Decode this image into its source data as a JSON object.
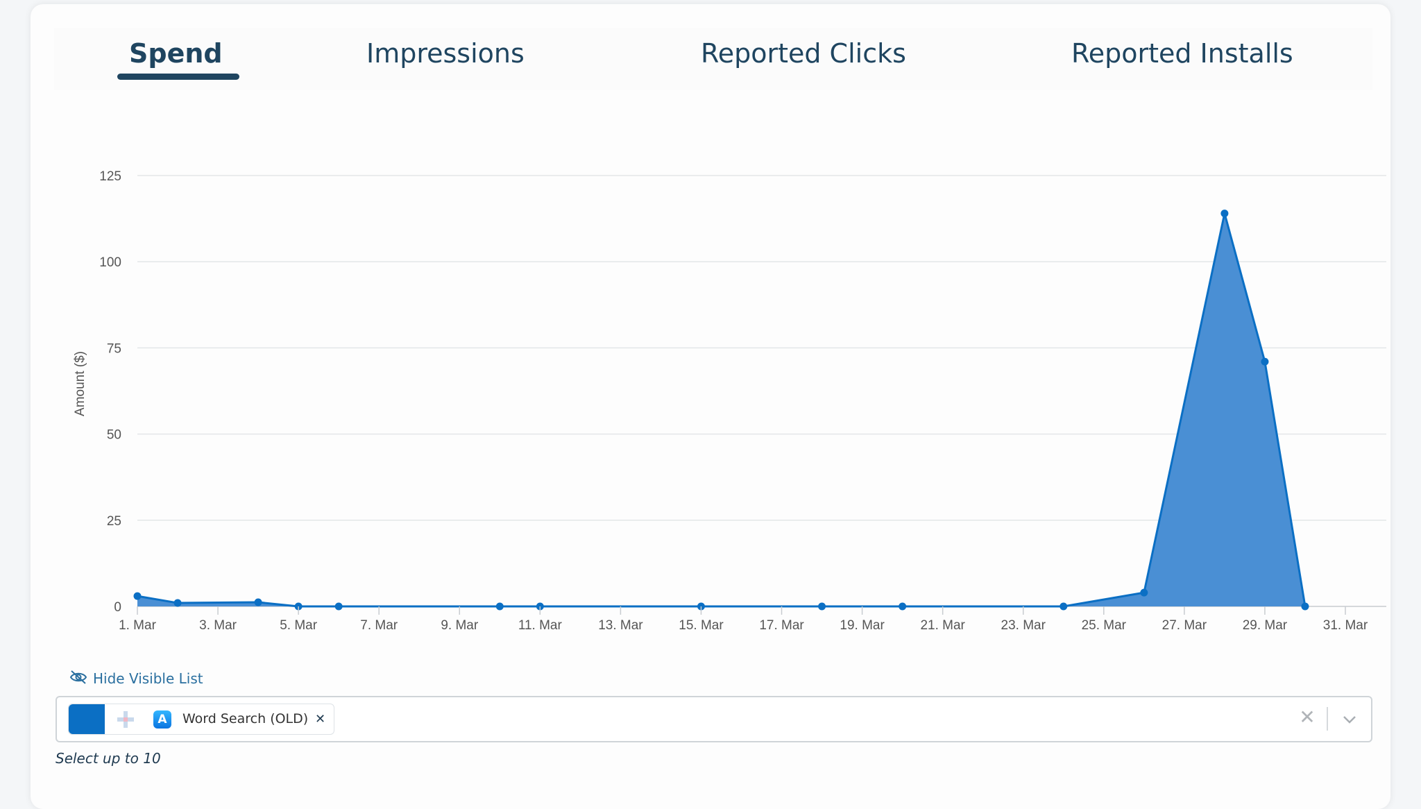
{
  "tabs": [
    {
      "label": "Spend",
      "active": true
    },
    {
      "label": "Impressions",
      "active": false
    },
    {
      "label": "Reported Clicks",
      "active": false
    },
    {
      "label": "Reported Installs",
      "active": false
    }
  ],
  "chart_data": {
    "type": "area",
    "ylabel": "Amount ($)",
    "xlabel": "",
    "ylim": [
      0,
      125
    ],
    "yticks": [
      0,
      25,
      50,
      75,
      100,
      125
    ],
    "xticks": [
      "1. Mar",
      "3. Mar",
      "5. Mar",
      "7. Mar",
      "9. Mar",
      "11. Mar",
      "13. Mar",
      "15. Mar",
      "17. Mar",
      "19. Mar",
      "21. Mar",
      "23. Mar",
      "25. Mar",
      "27. Mar",
      "29. Mar",
      "31. Mar"
    ],
    "grid": true,
    "color": "#0b6fc4",
    "fill_color": "#4a8fd4",
    "series": [
      {
        "day": [
          1,
          2,
          4,
          5,
          6,
          10,
          11,
          15,
          18,
          20,
          24,
          26,
          28,
          29,
          30
        ],
        "values": [
          3,
          1,
          1.2,
          0,
          0,
          0,
          0,
          0,
          0,
          0,
          0,
          4,
          114,
          71,
          0
        ]
      }
    ]
  },
  "visible_list": {
    "toggle_label": "Hide Visible List",
    "selected": [
      {
        "label": "Word Search (OLD)",
        "color": "#0b6fc4"
      }
    ],
    "hint": "Select up to 10"
  },
  "icons": {
    "toggle": "eye-slash-icon",
    "app": "app-store-icon",
    "remove": "close-icon",
    "clear": "clear-icon",
    "dropdown": "chevron-down-icon"
  }
}
